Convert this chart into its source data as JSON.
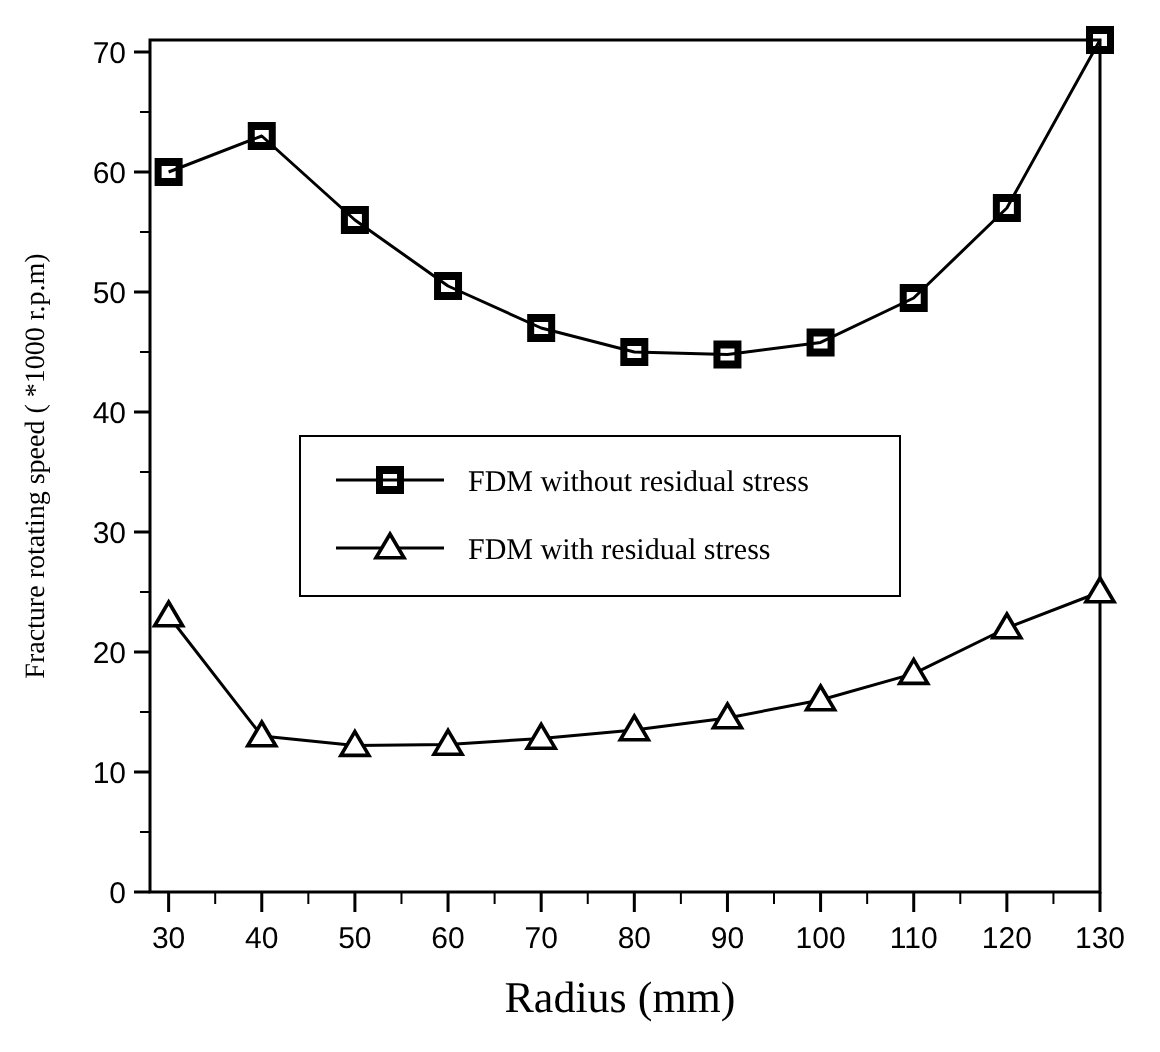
{
  "chart_data": {
    "type": "line",
    "xlabel": "Radius (mm)",
    "ylabel": "Fracture rotating speed ( *1000 r.p.m)",
    "x": [
      30,
      40,
      50,
      60,
      70,
      80,
      90,
      100,
      110,
      120,
      130
    ],
    "xlim": [
      28,
      130
    ],
    "xticks": [
      30,
      40,
      50,
      60,
      70,
      80,
      90,
      100,
      110,
      120,
      130
    ],
    "ylim": [
      0,
      71
    ],
    "yticks": [
      0,
      10,
      20,
      30,
      40,
      50,
      60,
      70
    ],
    "series": [
      {
        "name": "FDM without residual stress",
        "color": "#000000",
        "marker": "square",
        "values": [
          60,
          63,
          56,
          50.5,
          47,
          45,
          44.8,
          45.8,
          49.5,
          57,
          71
        ]
      },
      {
        "name": "FDM with residual stress",
        "color": "#000000",
        "marker": "triangle",
        "values": [
          23,
          13,
          12.2,
          12.3,
          12.8,
          13.5,
          14.5,
          16,
          18.2,
          22,
          25
        ]
      }
    ],
    "legend": "center",
    "grid": false,
    "line_style": "solid"
  }
}
